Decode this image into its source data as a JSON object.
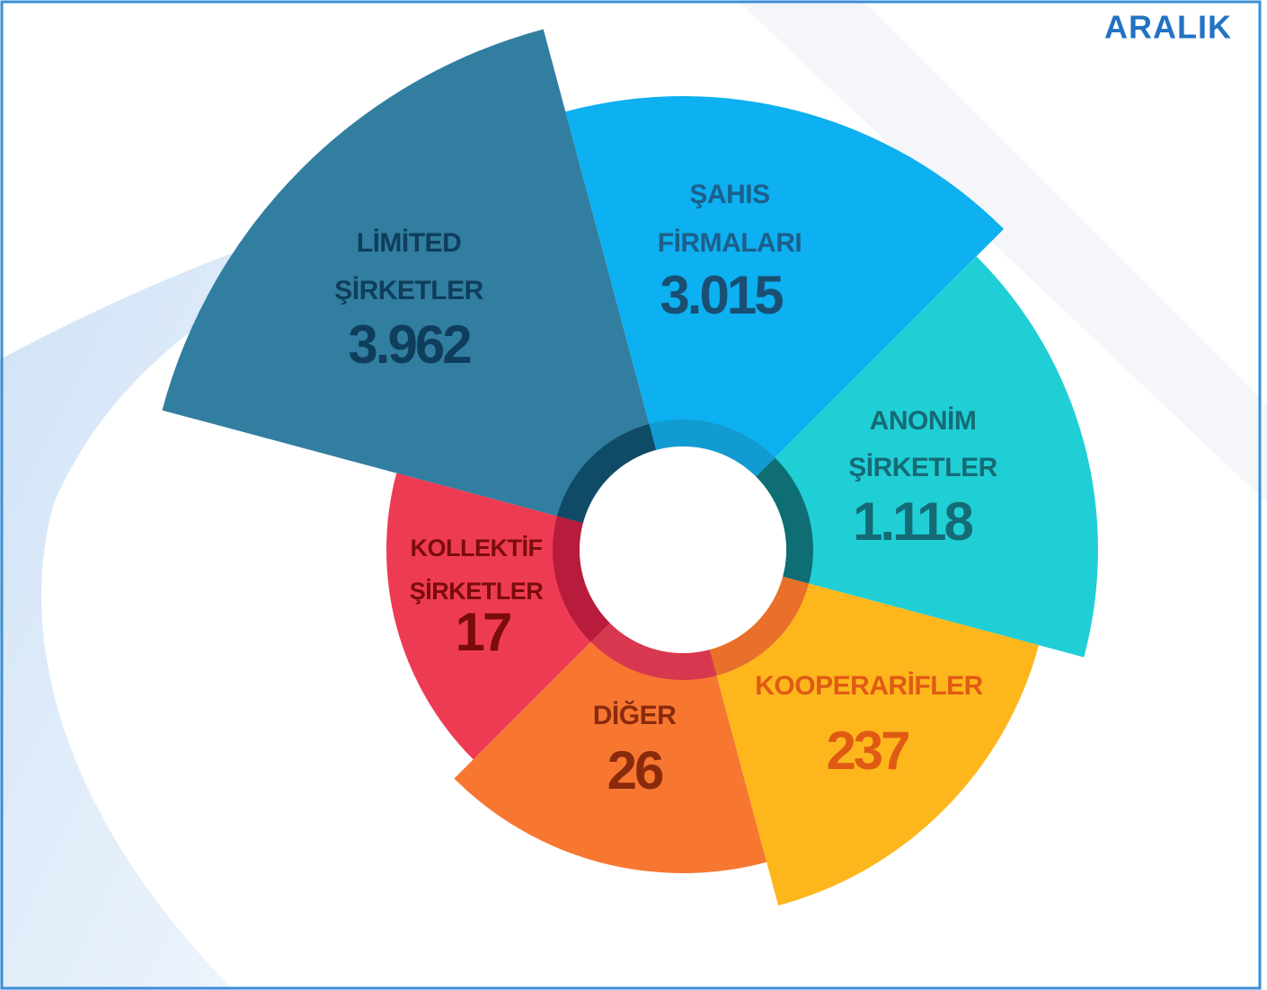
{
  "header": {
    "title": "ARALIK"
  },
  "segments": [
    {
      "label": [
        "LİMİTED",
        "ŞİRKETLER"
      ],
      "value": "3.962"
    },
    {
      "label": [
        "ŞAHIS",
        "FİRMALARI"
      ],
      "value": "3.015"
    },
    {
      "label": [
        "ANONİM",
        "ŞİRKETLER"
      ],
      "value": "1.118"
    },
    {
      "label": [
        "KOOPERARİFLER"
      ],
      "value": "237"
    },
    {
      "label": [
        "DİĞER"
      ],
      "value": "26"
    },
    {
      "label": [
        "KOLLEKTİF",
        "ŞİRKETLER"
      ],
      "value": "17"
    }
  ]
}
